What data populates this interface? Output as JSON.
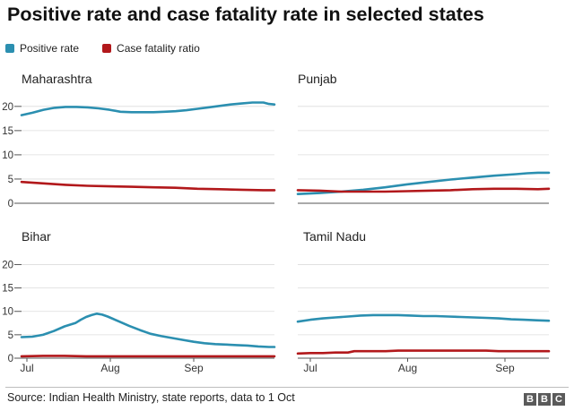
{
  "title": "Positive rate and case fatality rate in selected states",
  "legend": [
    {
      "label": "Positive rate",
      "color": "#2b8fb0"
    },
    {
      "label": "Case fatality ratio",
      "color": "#b2181b"
    }
  ],
  "source": "Source: Indian Health Ministry, state reports, data to 1 Oct",
  "logo": [
    "B",
    "B",
    "C"
  ],
  "chart_data": [
    {
      "type": "line",
      "title": "Maharashtra",
      "x_tick_labels": [],
      "y_ticks": [
        0,
        5,
        10,
        15,
        20
      ],
      "ylim": [
        0,
        22
      ],
      "xlim": [
        0,
        92
      ],
      "grid": true,
      "series": [
        {
          "name": "Positive rate",
          "color": "#2b8fb0",
          "x": [
            0,
            4,
            8,
            12,
            16,
            20,
            24,
            28,
            32,
            36,
            40,
            44,
            48,
            52,
            56,
            60,
            64,
            68,
            72,
            76,
            80,
            84,
            88,
            90,
            92
          ],
          "values": [
            18.2,
            18.7,
            19.3,
            19.7,
            19.9,
            19.9,
            19.8,
            19.6,
            19.3,
            18.9,
            18.8,
            18.8,
            18.8,
            18.9,
            19.0,
            19.2,
            19.5,
            19.8,
            20.1,
            20.4,
            20.6,
            20.8,
            20.8,
            20.5,
            20.4
          ]
        },
        {
          "name": "Case fatality ratio",
          "color": "#b2181b",
          "x": [
            0,
            8,
            16,
            24,
            32,
            40,
            48,
            56,
            64,
            72,
            80,
            88,
            92
          ],
          "values": [
            4.4,
            4.1,
            3.8,
            3.6,
            3.5,
            3.4,
            3.3,
            3.2,
            3.0,
            2.9,
            2.8,
            2.7,
            2.7
          ]
        }
      ]
    },
    {
      "type": "line",
      "title": "Punjab",
      "x_tick_labels": [],
      "y_ticks": [
        0,
        5,
        10,
        15,
        20
      ],
      "ylim": [
        0,
        22
      ],
      "xlim": [
        0,
        92
      ],
      "grid": true,
      "series": [
        {
          "name": "Positive rate",
          "color": "#2b8fb0",
          "x": [
            0,
            8,
            16,
            24,
            32,
            40,
            48,
            56,
            64,
            72,
            80,
            84,
            88,
            92
          ],
          "values": [
            1.9,
            2.1,
            2.4,
            2.8,
            3.3,
            3.9,
            4.4,
            4.9,
            5.3,
            5.7,
            6.0,
            6.2,
            6.3,
            6.3
          ]
        },
        {
          "name": "Case fatality ratio",
          "color": "#b2181b",
          "x": [
            0,
            8,
            16,
            24,
            32,
            40,
            48,
            56,
            64,
            72,
            80,
            88,
            92
          ],
          "values": [
            2.7,
            2.6,
            2.4,
            2.4,
            2.4,
            2.5,
            2.6,
            2.7,
            2.9,
            3.0,
            3.0,
            2.9,
            3.0
          ]
        }
      ]
    },
    {
      "type": "line",
      "title": "Bihar",
      "x_tick_labels": [
        {
          "label": "Jul",
          "x": 0
        },
        {
          "label": "Aug",
          "x": 31
        },
        {
          "label": "Sep",
          "x": 62
        }
      ],
      "y_ticks": [
        0,
        5,
        10,
        15,
        20
      ],
      "ylim": [
        0,
        22
      ],
      "xlim": [
        -2,
        92
      ],
      "grid": true,
      "series": [
        {
          "name": "Positive rate",
          "color": "#2b8fb0",
          "x": [
            -2,
            2,
            6,
            10,
            14,
            18,
            20,
            22,
            24,
            26,
            28,
            30,
            34,
            38,
            42,
            46,
            50,
            54,
            58,
            62,
            66,
            70,
            74,
            78,
            82,
            86,
            90,
            92
          ],
          "values": [
            4.5,
            4.6,
            5.0,
            5.8,
            6.8,
            7.5,
            8.2,
            8.8,
            9.2,
            9.5,
            9.3,
            8.9,
            7.9,
            6.9,
            6.0,
            5.2,
            4.7,
            4.3,
            3.9,
            3.5,
            3.2,
            3.0,
            2.9,
            2.8,
            2.7,
            2.5,
            2.4,
            2.4
          ]
        },
        {
          "name": "Case fatality ratio",
          "color": "#b2181b",
          "x": [
            -2,
            6,
            14,
            22,
            30,
            38,
            46,
            54,
            62,
            70,
            78,
            86,
            92
          ],
          "values": [
            0.4,
            0.5,
            0.5,
            0.4,
            0.4,
            0.4,
            0.4,
            0.4,
            0.4,
            0.4,
            0.4,
            0.4,
            0.4
          ]
        }
      ]
    },
    {
      "type": "line",
      "title": "Tamil Nadu",
      "x_tick_labels": [
        {
          "label": "Jul",
          "x": 0
        },
        {
          "label": "Aug",
          "x": 31
        },
        {
          "label": "Sep",
          "x": 62
        }
      ],
      "y_ticks": [
        0,
        5,
        10,
        15,
        20
      ],
      "ylim": [
        0,
        22
      ],
      "xlim": [
        -4,
        76
      ],
      "grid": true,
      "series": [
        {
          "name": "Positive rate",
          "color": "#2b8fb0",
          "x": [
            -4,
            0,
            4,
            8,
            12,
            16,
            20,
            24,
            28,
            32,
            36,
            40,
            44,
            48,
            52,
            56,
            60,
            64,
            68,
            72,
            76
          ],
          "values": [
            7.8,
            8.2,
            8.5,
            8.7,
            8.9,
            9.1,
            9.2,
            9.2,
            9.2,
            9.1,
            9.0,
            9.0,
            8.9,
            8.8,
            8.7,
            8.6,
            8.5,
            8.3,
            8.2,
            8.1,
            8.0
          ]
        },
        {
          "name": "Case fatality ratio",
          "color": "#b2181b",
          "x": [
            -4,
            0,
            4,
            8,
            12,
            14,
            16,
            20,
            24,
            28,
            32,
            36,
            40,
            44,
            48,
            52,
            56,
            60,
            64,
            68,
            72,
            76
          ],
          "values": [
            1.0,
            1.1,
            1.1,
            1.2,
            1.2,
            1.5,
            1.5,
            1.5,
            1.5,
            1.6,
            1.6,
            1.6,
            1.6,
            1.6,
            1.6,
            1.6,
            1.6,
            1.5,
            1.5,
            1.5,
            1.5,
            1.5
          ]
        }
      ]
    }
  ]
}
